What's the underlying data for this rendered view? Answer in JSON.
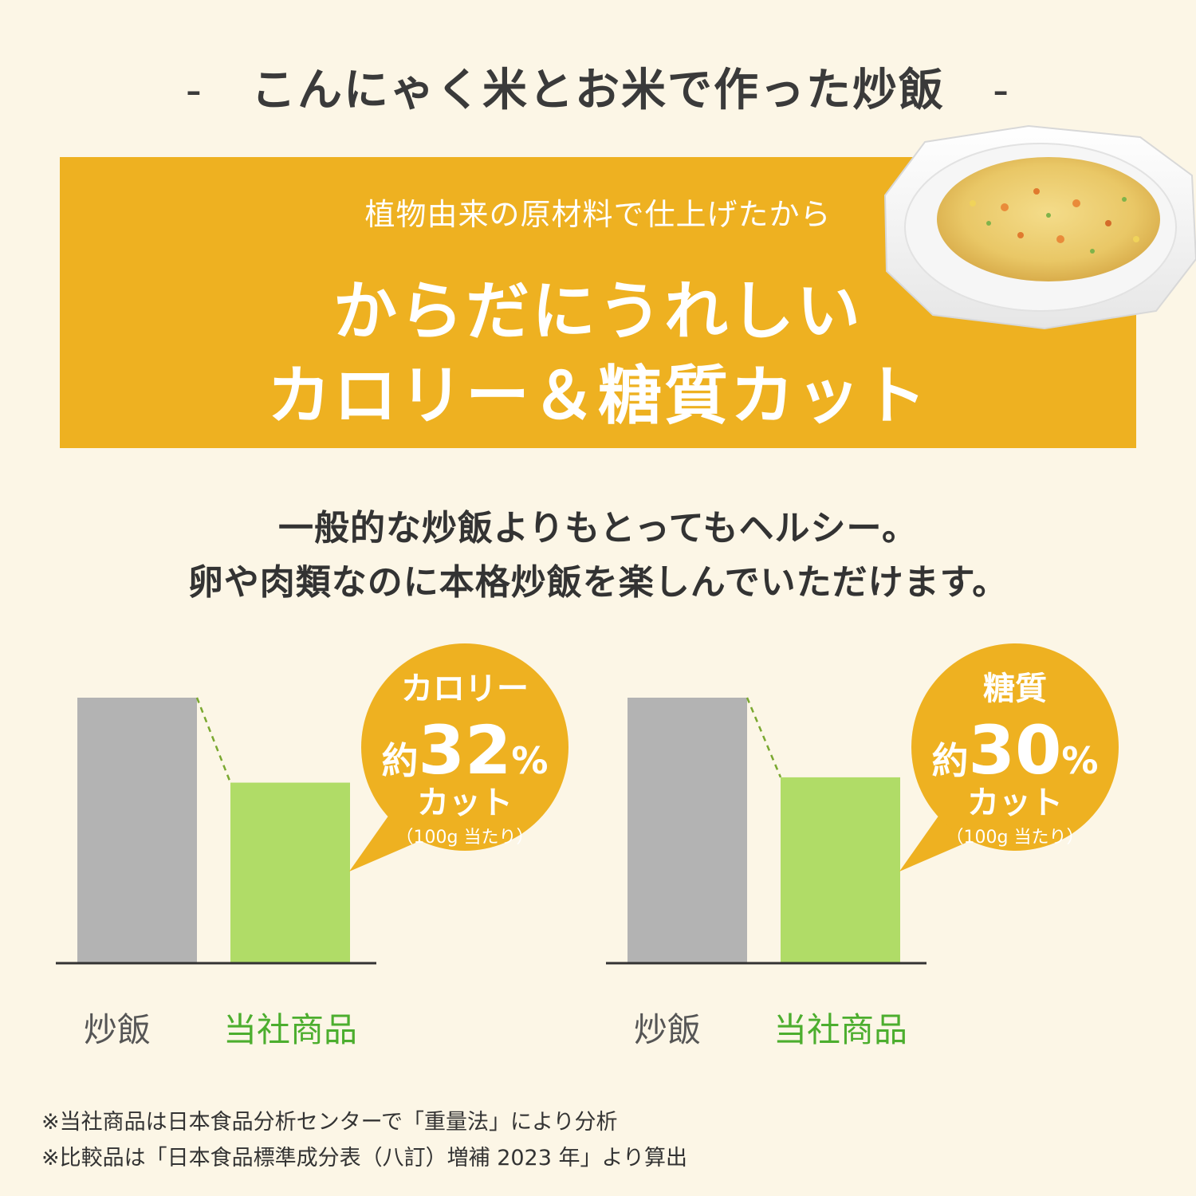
{
  "header": {
    "dash_left": "-",
    "title": "こんにゃく米とお米で作った炒飯",
    "dash_right": "-"
  },
  "banner": {
    "subtitle": "植物由来の原材料で仕上げたから",
    "headline_1": "からだにうれしい",
    "headline_2": "カロリー＆糖質カット",
    "background_color": "#eeb121"
  },
  "description": {
    "line_1": "一般的な炒飯よりもとってもヘルシー。",
    "line_2": "卵や肉類なのに本格炒飯を楽しんでいただけます。"
  },
  "chart_data": [
    {
      "type": "bar",
      "categories": [
        "炒飯",
        "当社商品"
      ],
      "values": [
        100,
        68
      ],
      "ylim": [
        0,
        100
      ],
      "colors": [
        "#b3b3b3",
        "#b0dc67"
      ],
      "label_colors": [
        "#555555",
        "#4cae2e"
      ],
      "callout": {
        "title": "カロリー",
        "prefix": "約",
        "number": "32",
        "unit": "%",
        "suffix": "カット",
        "note": "（100g 当たり）"
      }
    },
    {
      "type": "bar",
      "categories": [
        "炒飯",
        "当社商品"
      ],
      "values": [
        100,
        70
      ],
      "ylim": [
        0,
        100
      ],
      "colors": [
        "#b3b3b3",
        "#b0dc67"
      ],
      "label_colors": [
        "#555555",
        "#4cae2e"
      ],
      "callout": {
        "title": "糖質",
        "prefix": "約",
        "number": "30",
        "unit": "%",
        "suffix": "カット",
        "note": "（100g 当たり）"
      }
    }
  ],
  "footnotes": [
    "※当社商品は日本食品分析センターで「重量法」により分析",
    "※比較品は「日本食品標準成分表（八訂）増補 2023 年」より算出"
  ]
}
